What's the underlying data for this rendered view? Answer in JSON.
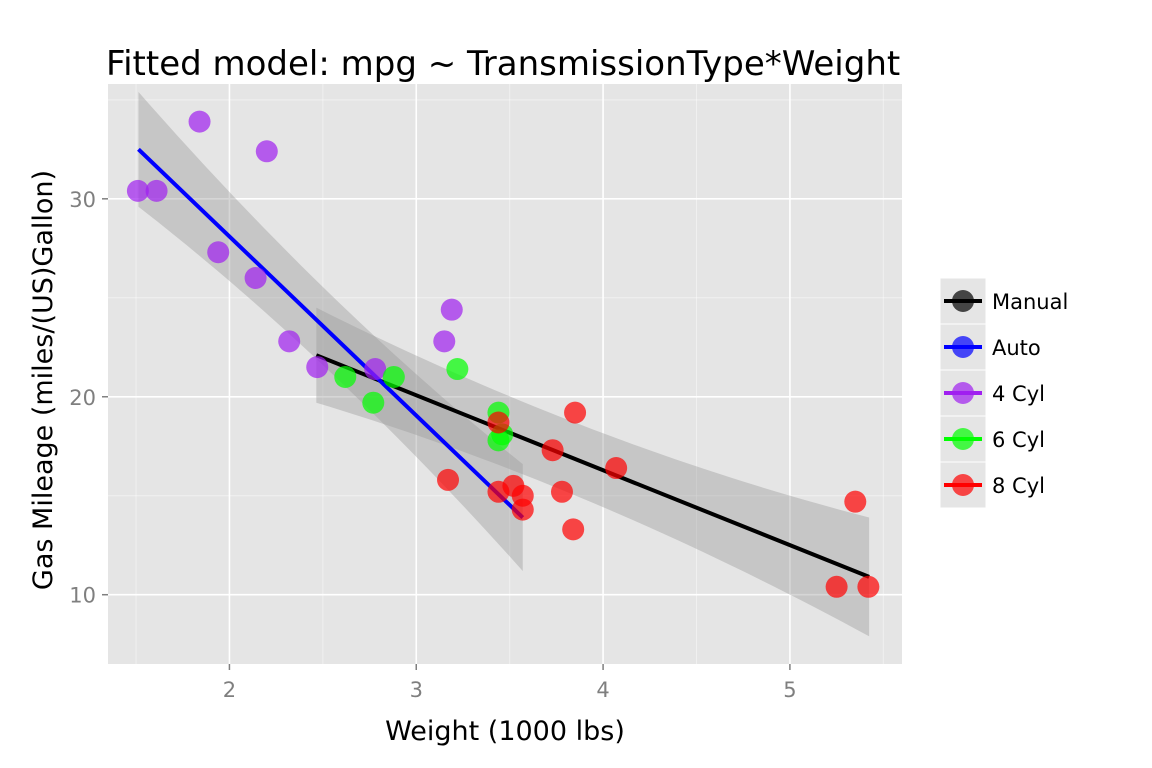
{
  "chart_data": {
    "type": "scatter",
    "title": "Fitted model: mpg ~ TransmissionType*Weight",
    "xlabel": "Weight (1000 lbs)",
    "ylabel": "Gas Mileage (miles/(US)Gallon)",
    "xlim": [
      1.35,
      5.6
    ],
    "ylim": [
      6.5,
      35.8
    ],
    "x_ticks": [
      2,
      3,
      4,
      5
    ],
    "y_ticks": [
      10,
      20,
      30
    ],
    "grid": true,
    "legend_position": "right",
    "points": [
      {
        "x": 1.51,
        "y": 30.4,
        "group": "4 Cyl"
      },
      {
        "x": 1.61,
        "y": 30.4,
        "group": "4 Cyl"
      },
      {
        "x": 1.84,
        "y": 33.9,
        "group": "4 Cyl"
      },
      {
        "x": 1.94,
        "y": 27.3,
        "group": "4 Cyl"
      },
      {
        "x": 2.14,
        "y": 26.0,
        "group": "4 Cyl"
      },
      {
        "x": 2.2,
        "y": 32.4,
        "group": "4 Cyl"
      },
      {
        "x": 2.32,
        "y": 22.8,
        "group": "4 Cyl"
      },
      {
        "x": 2.47,
        "y": 21.5,
        "group": "4 Cyl"
      },
      {
        "x": 2.78,
        "y": 21.4,
        "group": "4 Cyl"
      },
      {
        "x": 3.15,
        "y": 22.8,
        "group": "4 Cyl"
      },
      {
        "x": 3.19,
        "y": 24.4,
        "group": "4 Cyl"
      },
      {
        "x": 2.62,
        "y": 21.0,
        "group": "6 Cyl"
      },
      {
        "x": 2.77,
        "y": 19.7,
        "group": "6 Cyl"
      },
      {
        "x": 2.88,
        "y": 21.0,
        "group": "6 Cyl"
      },
      {
        "x": 3.22,
        "y": 21.4,
        "group": "6 Cyl"
      },
      {
        "x": 3.44,
        "y": 19.2,
        "group": "6 Cyl"
      },
      {
        "x": 3.44,
        "y": 17.8,
        "group": "6 Cyl"
      },
      {
        "x": 3.46,
        "y": 18.1,
        "group": "6 Cyl"
      },
      {
        "x": 3.17,
        "y": 15.8,
        "group": "8 Cyl"
      },
      {
        "x": 3.44,
        "y": 15.2,
        "group": "8 Cyl"
      },
      {
        "x": 3.44,
        "y": 18.7,
        "group": "8 Cyl"
      },
      {
        "x": 3.52,
        "y": 15.5,
        "group": "8 Cyl"
      },
      {
        "x": 3.57,
        "y": 14.3,
        "group": "8 Cyl"
      },
      {
        "x": 3.57,
        "y": 15.0,
        "group": "8 Cyl"
      },
      {
        "x": 3.73,
        "y": 17.3,
        "group": "8 Cyl"
      },
      {
        "x": 3.78,
        "y": 15.2,
        "group": "8 Cyl"
      },
      {
        "x": 3.84,
        "y": 13.3,
        "group": "8 Cyl"
      },
      {
        "x": 3.85,
        "y": 19.2,
        "group": "8 Cyl"
      },
      {
        "x": 4.07,
        "y": 16.4,
        "group": "8 Cyl"
      },
      {
        "x": 5.25,
        "y": 10.4,
        "group": "8 Cyl"
      },
      {
        "x": 5.35,
        "y": 14.7,
        "group": "8 Cyl"
      },
      {
        "x": 5.42,
        "y": 10.4,
        "group": "8 Cyl"
      }
    ],
    "fits": [
      {
        "name": "Manual",
        "x": [
          2.465,
          5.424
        ],
        "y": [
          22.1,
          10.9
        ],
        "ribbon_lower": [
          19.7,
          7.9
        ],
        "ribbon_upper": [
          24.5,
          13.9
        ]
      },
      {
        "name": "Auto",
        "x": [
          1.513,
          3.57
        ],
        "y": [
          32.5,
          13.9
        ],
        "ribbon_lower": [
          29.6,
          11.2
        ],
        "ribbon_upper": [
          35.4,
          16.6
        ]
      }
    ],
    "legend": [
      {
        "label": "Manual",
        "color": "#000000"
      },
      {
        "label": "Auto",
        "color": "#0000ff"
      },
      {
        "label": "4 Cyl",
        "color": "#a020f0"
      },
      {
        "label": "6 Cyl",
        "color": "#00ff00"
      },
      {
        "label": "8 Cyl",
        "color": "#ff0000"
      }
    ],
    "colors": {
      "panel_background": "#e5e5e5",
      "grid": "#ffffff",
      "ribbon": "#999999"
    }
  }
}
